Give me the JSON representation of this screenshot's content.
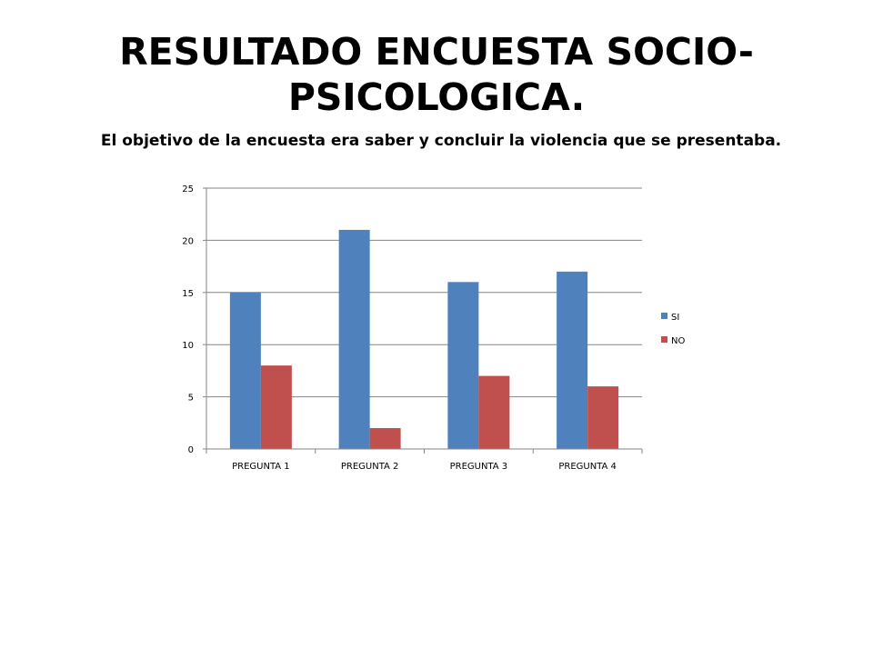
{
  "slide": {
    "title": "RESULTADO ENCUESTA SOCIO-PSICOLOGICA.",
    "subtitle": "El objetivo de la encuesta era saber y concluir la violencia que se presentaba."
  },
  "chart_data": {
    "type": "bar",
    "title": "",
    "xlabel": "",
    "ylabel": "",
    "categories": [
      "PREGUNTA 1",
      "PREGUNTA 2",
      "PREGUNTA 3",
      "PREGUNTA 4"
    ],
    "series": [
      {
        "name": "SI",
        "values": [
          15,
          21,
          16,
          17
        ],
        "color": "#4F81BD"
      },
      {
        "name": "NO",
        "values": [
          8,
          2,
          7,
          6
        ],
        "color": "#C0504D"
      }
    ],
    "ylim": [
      0,
      25
    ],
    "yticks": [
      0,
      5,
      10,
      15,
      20,
      25
    ],
    "grid": true,
    "legend_position": "right"
  }
}
